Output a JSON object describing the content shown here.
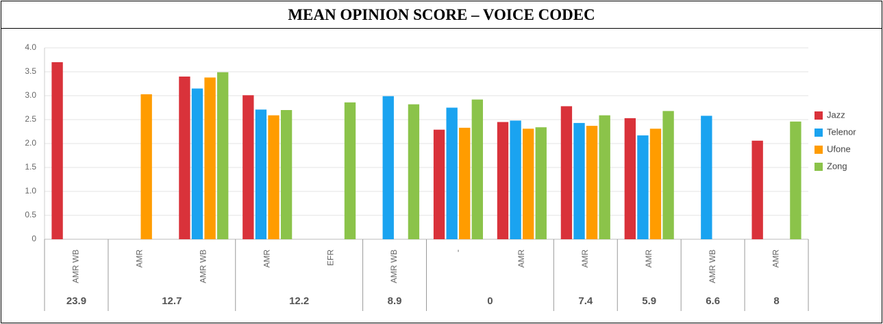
{
  "chart_data": {
    "type": "bar",
    "title": "MEAN OPINION SCORE – VOICE CODEC",
    "groups": [
      {
        "name": "23.9",
        "categories": [
          "AMR WB"
        ]
      },
      {
        "name": "12.7",
        "categories": [
          "AMR",
          "AMR WB"
        ]
      },
      {
        "name": "12.2",
        "categories": [
          "AMR",
          "EFR"
        ]
      },
      {
        "name": "8.9",
        "categories": [
          "AMR WB"
        ]
      },
      {
        "name": "0",
        "categories": [
          "-",
          "AMR"
        ]
      },
      {
        "name": "7.4",
        "categories": [
          "AMR"
        ]
      },
      {
        "name": "5.9",
        "categories": [
          "AMR"
        ]
      },
      {
        "name": "6.6",
        "categories": [
          "AMR WB"
        ]
      },
      {
        "name": "8",
        "categories": [
          "AMR"
        ]
      }
    ],
    "series": [
      {
        "name": "Jazz",
        "color": "#d9323a",
        "values": [
          3.7,
          null,
          3.4,
          3.01,
          null,
          null,
          2.29,
          2.45,
          2.78,
          2.53,
          null,
          2.06
        ]
      },
      {
        "name": "Telenor",
        "color": "#1aa3f0",
        "values": [
          null,
          null,
          3.15,
          2.71,
          null,
          2.99,
          2.75,
          2.48,
          2.43,
          2.17,
          2.58,
          null
        ]
      },
      {
        "name": "Ufone",
        "color": "#ff9c00",
        "values": [
          null,
          3.03,
          3.38,
          2.59,
          null,
          null,
          2.33,
          2.31,
          2.37,
          2.31,
          null,
          null
        ]
      },
      {
        "name": "Zong",
        "color": "#8bc34a",
        "values": [
          null,
          null,
          3.49,
          2.7,
          2.86,
          2.82,
          2.92,
          2.34,
          2.59,
          2.68,
          null,
          2.46
        ]
      }
    ],
    "ylim": [
      0,
      4
    ],
    "yticks": [
      0,
      0.5,
      {
        "value": 1,
        "label": "1.0"
      },
      1.5,
      {
        "value": 2,
        "label": "2.0"
      },
      2.5,
      {
        "value": 3,
        "label": "3.0"
      },
      3.5,
      {
        "value": 4,
        "label": "4.0"
      }
    ],
    "grid": true,
    "legend": "right"
  }
}
